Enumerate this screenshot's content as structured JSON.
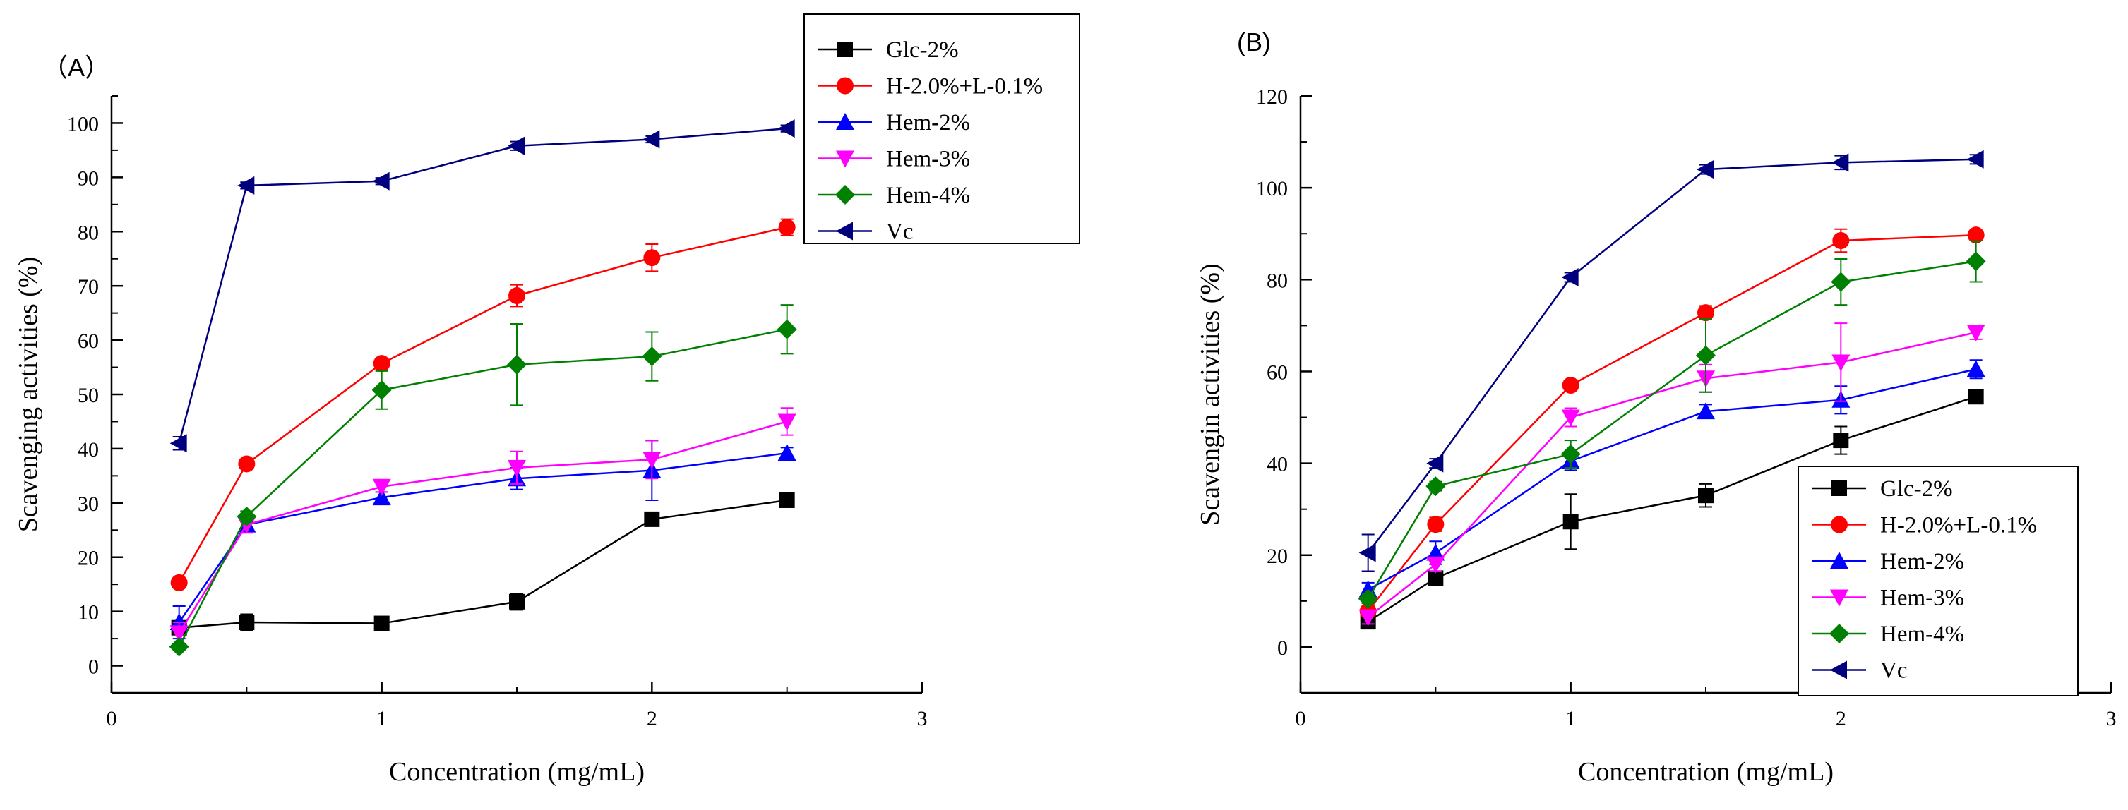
{
  "chart_data": [
    {
      "type": "line",
      "panel_label": "（A）",
      "xlabel": "Concentration (mg/mL)",
      "ylabel": "Scavenging activities (%)",
      "xlim": [
        0,
        3
      ],
      "ylim": [
        -5,
        105
      ],
      "xticks": [
        0,
        1,
        2,
        3
      ],
      "yticks": [
        0,
        10,
        20,
        30,
        40,
        50,
        60,
        70,
        80,
        90,
        100
      ],
      "legend_position": "top-right",
      "x": [
        0.25,
        0.5,
        1,
        1.5,
        2,
        2.5
      ],
      "series": [
        {
          "name": "Glc-2%",
          "color": "#000000",
          "marker": "square",
          "values": [
            7,
            8,
            7.8,
            11.8,
            27,
            30.5
          ],
          "errors": [
            0.5,
            1.5,
            0.5,
            1.5,
            0.8,
            1.2
          ]
        },
        {
          "name": "H-2.0%+L-0.1%",
          "color": "#ff0000",
          "marker": "circle",
          "values": [
            15.3,
            37.2,
            55.7,
            68.2,
            75.2,
            80.8
          ],
          "errors": [
            0.6,
            0.8,
            0.7,
            2.0,
            2.5,
            1.5
          ]
        },
        {
          "name": "Hem-2%",
          "color": "#0000ff",
          "marker": "triangle-up",
          "values": [
            8,
            26,
            31,
            34.5,
            36,
            39.2
          ],
          "errors": [
            3.0,
            1.5,
            1.0,
            2.0,
            5.5,
            1.0
          ]
        },
        {
          "name": "Hem-3%",
          "color": "#ff00ff",
          "marker": "triangle-down",
          "values": [
            6,
            26,
            33,
            36.5,
            38,
            45
          ],
          "errors": [
            2.0,
            1.5,
            1.0,
            3.0,
            3.5,
            2.5
          ]
        },
        {
          "name": "Hem-4%",
          "color": "#008000",
          "marker": "diamond",
          "values": [
            3.5,
            27.5,
            50.8,
            55.5,
            57,
            62
          ],
          "errors": [
            0.5,
            1.0,
            3.5,
            7.5,
            4.5,
            4.5
          ]
        },
        {
          "name": "Vc",
          "color": "#00007f",
          "marker": "triangle-left",
          "values": [
            41,
            88.5,
            89.3,
            95.8,
            97,
            99
          ],
          "errors": [
            1.2,
            0.6,
            0.6,
            0.8,
            0.6,
            0.6
          ]
        }
      ]
    },
    {
      "type": "line",
      "panel_label": "(B)",
      "xlabel": "Concentration (mg/mL)",
      "ylabel": "Scavengin activities (%)",
      "xlim": [
        0,
        3
      ],
      "ylim": [
        -10,
        120
      ],
      "xticks": [
        0,
        1,
        2,
        3
      ],
      "yticks": [
        0,
        20,
        40,
        60,
        80,
        100,
        120
      ],
      "legend_position": "bottom-right",
      "x": [
        0.25,
        0.5,
        1,
        1.5,
        2,
        2.5
      ],
      "series": [
        {
          "name": "Glc-2%",
          "color": "#000000",
          "marker": "square",
          "values": [
            5.5,
            15,
            27.3,
            33,
            45,
            54.5
          ],
          "errors": [
            1.0,
            1.0,
            6.0,
            2.5,
            3.0,
            1.0
          ]
        },
        {
          "name": "H-2.0%+L-0.1%",
          "color": "#ff0000",
          "marker": "circle",
          "values": [
            7.8,
            26.7,
            57,
            72.8,
            88.5,
            89.7
          ],
          "errors": [
            1.0,
            1.5,
            1.0,
            1.5,
            2.5,
            1.0
          ]
        },
        {
          "name": "Hem-2%",
          "color": "#0000ff",
          "marker": "triangle-up",
          "values": [
            12.5,
            20.5,
            40.5,
            51.3,
            53.8,
            60.5
          ],
          "errors": [
            1.5,
            2.5,
            2.0,
            1.5,
            3.0,
            2.0
          ]
        },
        {
          "name": "Hem-3%",
          "color": "#ff00ff",
          "marker": "triangle-down",
          "values": [
            6.5,
            18,
            50,
            58.5,
            62,
            68.5
          ],
          "errors": [
            1.5,
            1.5,
            2.0,
            3.0,
            8.5,
            1.5
          ]
        },
        {
          "name": "Hem-4%",
          "color": "#008000",
          "marker": "diamond",
          "values": [
            10.5,
            35,
            42,
            63.5,
            79.5,
            84
          ],
          "errors": [
            1.0,
            1.0,
            3.0,
            8.0,
            5.0,
            4.5
          ]
        },
        {
          "name": "Vc",
          "color": "#00007f",
          "marker": "triangle-left",
          "values": [
            20.5,
            40,
            80.5,
            104,
            105.5,
            106.2
          ],
          "errors": [
            4.0,
            1.0,
            1.0,
            1.0,
            1.5,
            1.0
          ]
        }
      ]
    }
  ]
}
